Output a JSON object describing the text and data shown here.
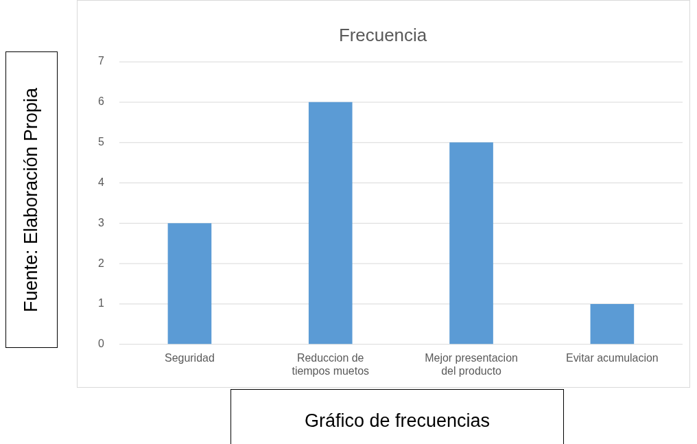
{
  "chart_data": {
    "type": "bar",
    "title": "Frecuencia",
    "categories": [
      "Seguridad",
      "Reduccion de tiempos muetos",
      "Mejor presentacion del producto",
      "Evitar acumulacion"
    ],
    "values": [
      3,
      6,
      5,
      1
    ],
    "color": "#5b9bd5",
    "ylim": [
      0,
      7
    ],
    "yticks": [
      0,
      1,
      2,
      3,
      4,
      5,
      6,
      7
    ],
    "grid": "y",
    "legend": false,
    "annotations": [
      "Fuente: Elaboración Propia",
      "Gráfico de frecuencias"
    ]
  }
}
